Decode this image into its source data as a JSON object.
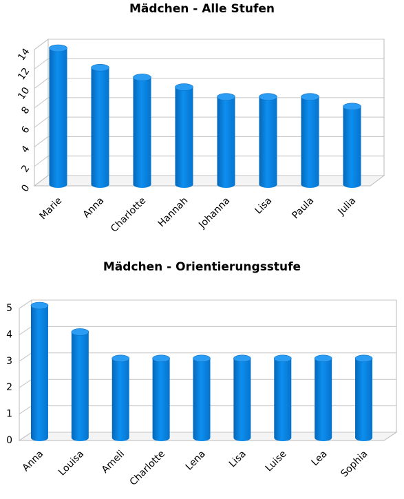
{
  "chart_data": [
    {
      "type": "bar",
      "title": "Mädchen - Alle Stufen",
      "categories": [
        "Marie",
        "Anna",
        "Charlotte",
        "Hannah",
        "Johanna",
        "Lisa",
        "Paula",
        "Julia"
      ],
      "values": [
        14,
        12,
        11,
        10,
        9,
        9,
        9,
        8
      ],
      "ylim": [
        0,
        14
      ],
      "yticks": [
        0,
        2,
        4,
        6,
        8,
        10,
        12,
        14
      ],
      "grid": true,
      "style": "3d-cylinder",
      "bar_color": "#0a84e6"
    },
    {
      "type": "bar",
      "title": "Mädchen - Orientierungsstufe",
      "categories": [
        "Anna",
        "Louisa",
        "Ameli",
        "Charlotte",
        "Lena",
        "Lisa",
        "Luise",
        "Lea",
        "Sophia"
      ],
      "values": [
        5,
        4,
        3,
        3,
        3,
        3,
        3,
        3,
        3
      ],
      "ylim": [
        0,
        5
      ],
      "yticks": [
        0,
        1,
        2,
        3,
        4,
        5
      ],
      "grid": true,
      "style": "3d-cylinder",
      "bar_color": "#0a84e6"
    }
  ]
}
